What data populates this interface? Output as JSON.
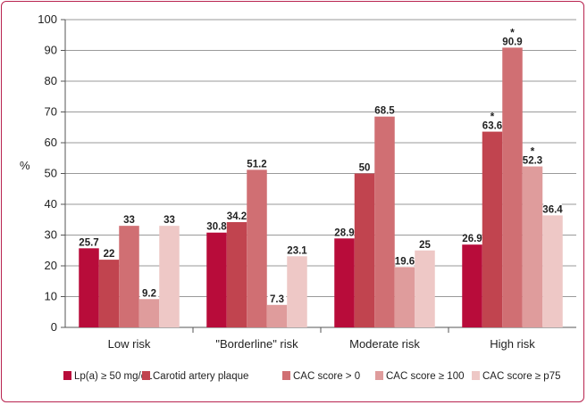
{
  "chart_data": {
    "type": "bar",
    "title": "",
    "xlabel": "",
    "ylabel": "%",
    "ylim": [
      0,
      100
    ],
    "yticks": [
      "0",
      "10",
      "20",
      "30",
      "40",
      "50",
      "60",
      "70",
      "80",
      "90",
      "100"
    ],
    "grid": true,
    "legend_position": "bottom",
    "categories": [
      "Low risk",
      "\"Borderline\" risk",
      "Moderate risk",
      "High risk"
    ],
    "series": [
      {
        "name": "Lp(a) ≥ 50 mg/dL",
        "color": "#b80c3a",
        "values": [
          25.7,
          30.8,
          28.9,
          26.9
        ],
        "labels": [
          "25.7",
          "30.8",
          "28.9",
          "26.9"
        ]
      },
      {
        "name": "Carotid artery plaque",
        "color": "#c1444f",
        "values": [
          22,
          34.2,
          50,
          63.6
        ],
        "labels": [
          "22",
          "34.2",
          "50",
          "63.6"
        ]
      },
      {
        "name": "CAC score > 0",
        "color": "#d06f73",
        "values": [
          33,
          51.2,
          68.5,
          90.9
        ],
        "labels": [
          "33",
          "51.2",
          "68.5",
          "90.9"
        ]
      },
      {
        "name": "CAC score ≥ 100",
        "color": "#df9c9c",
        "values": [
          9.2,
          7.3,
          19.6,
          52.3
        ],
        "labels": [
          "9.2",
          "7.3",
          "19.6",
          "52.3"
        ]
      },
      {
        "name": "CAC score ≥ p75",
        "color": "#eec8c6",
        "values": [
          33,
          23.1,
          25,
          36.4
        ],
        "labels": [
          "33",
          "23.1",
          "25",
          "36.4"
        ]
      }
    ],
    "annotations": [
      {
        "category": "High risk",
        "series": "Carotid artery plaque",
        "text": "*"
      },
      {
        "category": "High risk",
        "series": "CAC score > 0",
        "text": "*"
      },
      {
        "category": "High risk",
        "series": "CAC score ≥ 100",
        "text": "*"
      }
    ]
  }
}
